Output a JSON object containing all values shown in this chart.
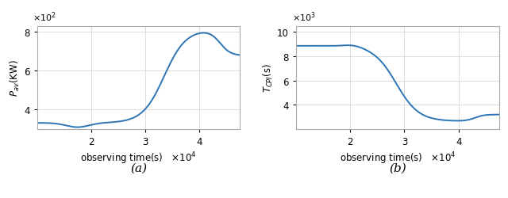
{
  "fig_width": 6.4,
  "fig_height": 2.51,
  "dpi": 100,
  "background_color": "#ffffff",
  "line_color": "#2e75b6",
  "line_width": 1.4,
  "subplot_a": {
    "xlabel": "observing time(s)",
    "ylabel": "$P_{av}$(KW)",
    "xlim": [
      1.0,
      4.75
    ],
    "ylim": [
      3.0,
      8.3
    ],
    "x_ticks": [
      2,
      3,
      4
    ],
    "y_ticks": [
      4,
      6,
      8
    ],
    "x_scale_label": "×10⁴",
    "y_scale_label": "×10²",
    "label": "(a)"
  },
  "subplot_b": {
    "xlabel": "observing time(s)",
    "ylabel": "$T_{CPI}$(s)",
    "xlim": [
      1.0,
      4.75
    ],
    "ylim": [
      2.0,
      10.5
    ],
    "x_ticks": [
      2,
      3,
      4
    ],
    "y_ticks": [
      4,
      6,
      8,
      10
    ],
    "x_scale_label": "×10⁴",
    "y_scale_label": "×10³",
    "label": "(b)"
  }
}
